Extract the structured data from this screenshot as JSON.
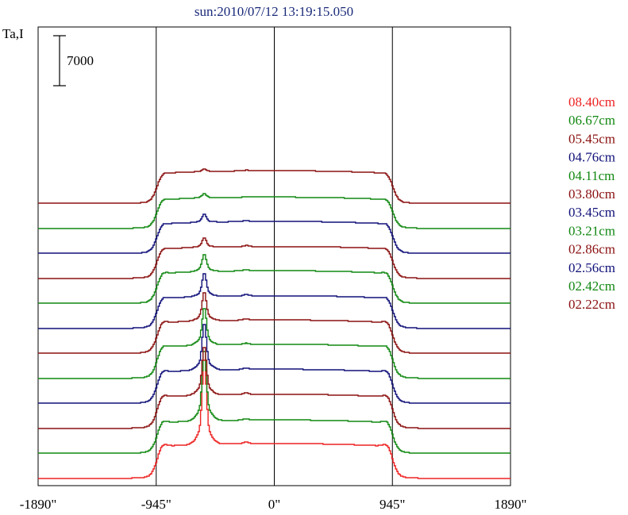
{
  "chart_data": {
    "type": "line",
    "title": "sun:2010/07/12 13:19:15.050",
    "ylabel": "Ta,I",
    "scale_bar": {
      "label": "7000",
      "value": 7000
    },
    "xlim": [
      -1890,
      1890
    ],
    "x_ticks": [
      {
        "value": -1890,
        "label": "-1890\""
      },
      {
        "value": -945,
        "label": "-945\""
      },
      {
        "value": 0,
        "label": "0\""
      },
      {
        "value": 945,
        "label": "945\""
      },
      {
        "value": 1890,
        "label": "1890\""
      }
    ],
    "vertical_lines": [
      -945,
      0,
      945
    ],
    "grid": false,
    "legend_placement": "right",
    "limb_arcsec": 945,
    "series": [
      {
        "name": "08.40cm",
        "color": "#ee2222",
        "baseline": 0,
        "disk": 4900,
        "peak_x": -565,
        "peak": 9800,
        "bump_x": -230,
        "bump": 250,
        "limb": 1700
      },
      {
        "name": "06.67cm",
        "color": "#118811",
        "baseline": 3500,
        "disk": 4700,
        "peak_x": -565,
        "peak": 8100,
        "bump_x": -230,
        "bump": 200,
        "limb": 1500
      },
      {
        "name": "05.45cm",
        "color": "#8b1010",
        "baseline": 7000,
        "disk": 4800,
        "peak_x": -565,
        "peak": 5600,
        "bump_x": -230,
        "bump": 200,
        "limb": 1500
      },
      {
        "name": "04.76cm",
        "color": "#10107a",
        "baseline": 10500,
        "disk": 4800,
        "peak_x": -565,
        "peak": 5300,
        "bump_x": -230,
        "bump": 200,
        "limb": 1400
      },
      {
        "name": "04.11cm",
        "color": "#118811",
        "baseline": 14000,
        "disk": 4800,
        "peak_x": -565,
        "peak": 4300,
        "bump_x": -230,
        "bump": 180,
        "limb": 1300
      },
      {
        "name": "03.80cm",
        "color": "#8b1010",
        "baseline": 17500,
        "disk": 4700,
        "peak_x": -565,
        "peak": 3300,
        "bump_x": -230,
        "bump": 180,
        "limb": 1200
      },
      {
        "name": "03.45cm",
        "color": "#10107a",
        "baseline": 21000,
        "disk": 4600,
        "peak_x": -565,
        "peak": 2700,
        "bump_x": -230,
        "bump": 180,
        "limb": 1100
      },
      {
        "name": "03.21cm",
        "color": "#118811",
        "baseline": 24500,
        "disk": 4600,
        "peak_x": -565,
        "peak": 2000,
        "bump_x": -230,
        "bump": 160,
        "limb": 1000
      },
      {
        "name": "02.86cm",
        "color": "#8b1010",
        "baseline": 28000,
        "disk": 4500,
        "peak_x": -565,
        "peak": 1100,
        "bump_x": -230,
        "bump": 150,
        "limb": 900
      },
      {
        "name": "02.56cm",
        "color": "#10107a",
        "baseline": 31500,
        "disk": 4500,
        "peak_x": -565,
        "peak": 900,
        "bump_x": -230,
        "bump": 150,
        "limb": 800
      },
      {
        "name": "02.42cm",
        "color": "#118811",
        "baseline": 35000,
        "disk": 4400,
        "peak_x": -565,
        "peak": 500,
        "bump_x": -230,
        "bump": 100,
        "limb": 700
      },
      {
        "name": "02.22cm",
        "color": "#8b1010",
        "baseline": 38500,
        "disk": 4600,
        "peak_x": -565,
        "peak": 300,
        "bump_x": -230,
        "bump": 100,
        "limb": 600
      }
    ]
  }
}
